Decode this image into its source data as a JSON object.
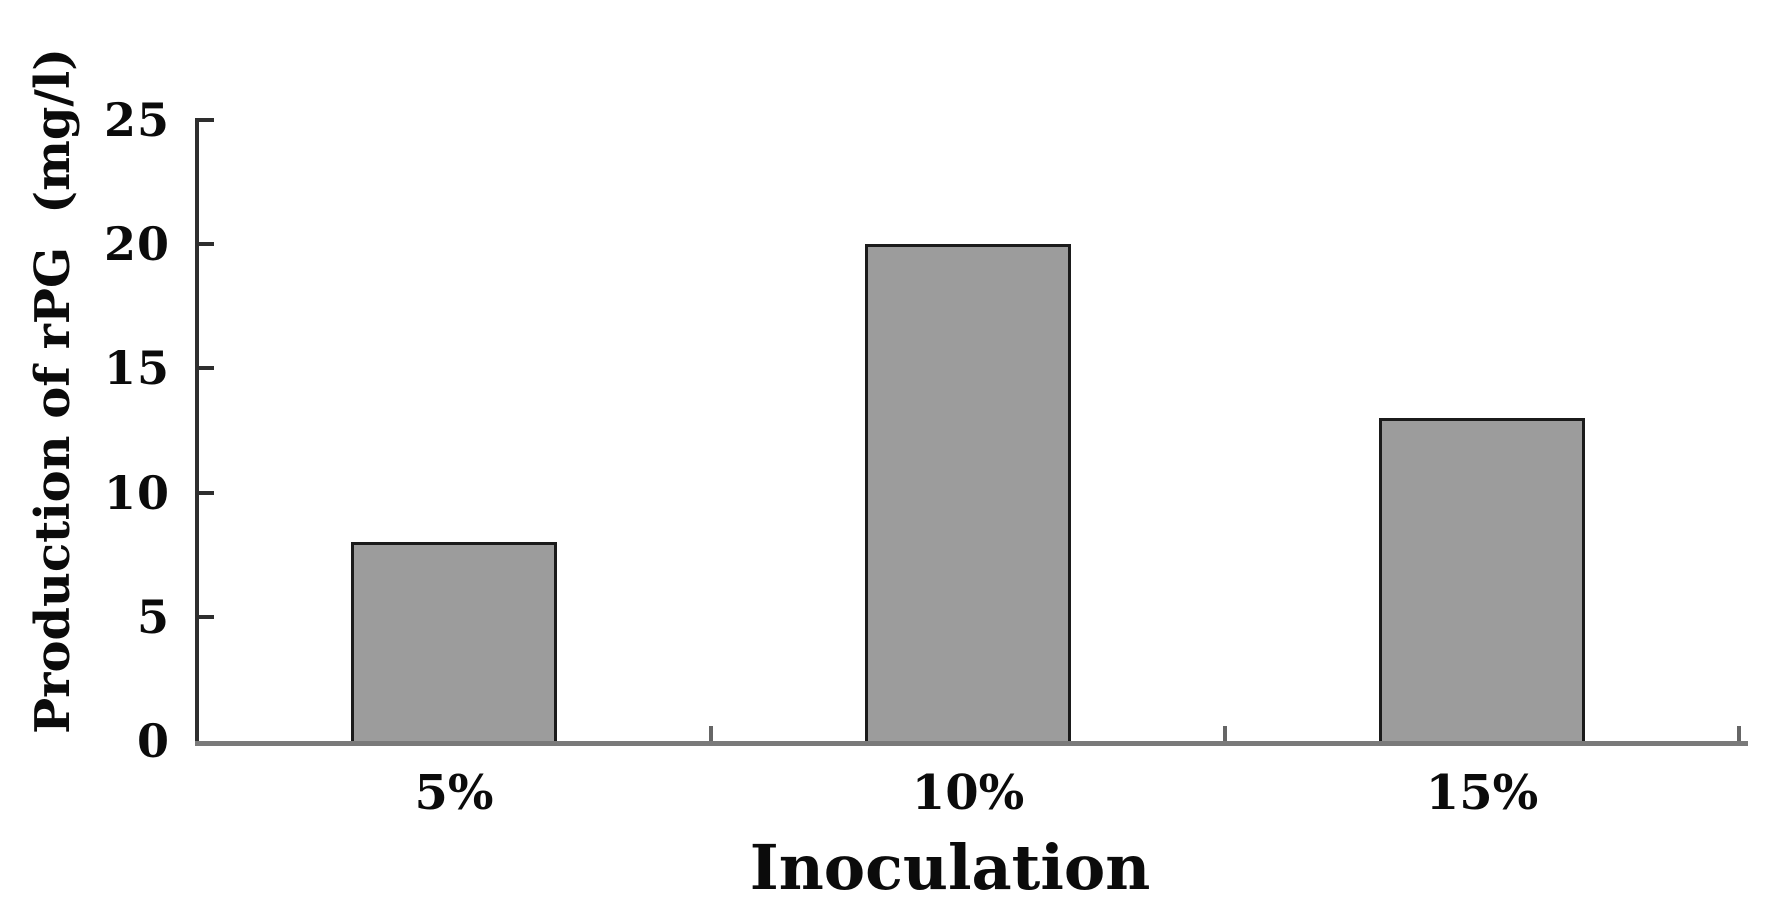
{
  "chart_data": {
    "type": "bar",
    "categories": [
      "5%",
      "10%",
      "15%"
    ],
    "values": [
      8,
      20,
      13
    ],
    "xlabel": "Inoculation",
    "ylabel": "Production of rPG  (mg/l)",
    "ylim": [
      0,
      25
    ],
    "yticks": [
      0,
      5,
      10,
      15,
      20,
      25
    ],
    "grid": false,
    "legend": false,
    "tick_direction": "in",
    "colors": {
      "bar_fill": "#9c9c9c",
      "bar_border": "#1b1b1b",
      "y_axis": "#2e2e2e",
      "x_axis": "#7a7a7a",
      "text": "#0b0b0b",
      "background": "#ffffff"
    }
  }
}
